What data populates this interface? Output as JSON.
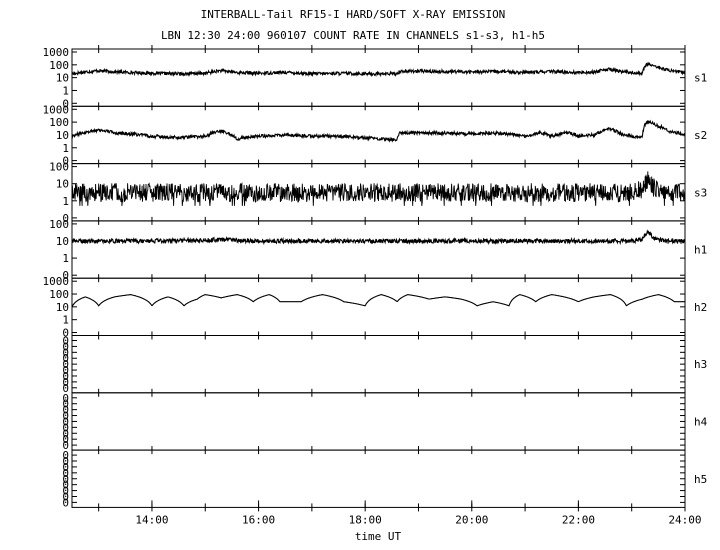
{
  "chart_data": {
    "type": "line",
    "title": "INTERBALL-Tail RF15-I HARD/SOFT X-RAY EMISSION",
    "subtitle": "LBN 12:30 24:00 960107  COUNT RATE IN CHANNELS s1-s3, h1-h5",
    "xlabel": "time UT",
    "xlim": [
      "12:30",
      "24:00"
    ],
    "x_ticks": [
      "14:00",
      "16:00",
      "18:00",
      "20:00",
      "22:00",
      "24:00"
    ],
    "y_scale": "log",
    "panels": [
      {
        "name": "s1",
        "y_ticks": [
          "1000",
          "100",
          "10",
          "1",
          "0"
        ],
        "baseline": 25,
        "series": [
          [
            12.5,
            20
          ],
          [
            13.0,
            35
          ],
          [
            13.3,
            28
          ],
          [
            14.0,
            22
          ],
          [
            14.5,
            20
          ],
          [
            15.0,
            22
          ],
          [
            15.3,
            35
          ],
          [
            15.6,
            25
          ],
          [
            16.0,
            22
          ],
          [
            16.5,
            26
          ],
          [
            17.0,
            20
          ],
          [
            17.5,
            22
          ],
          [
            18.0,
            20
          ],
          [
            18.6,
            20
          ],
          [
            18.65,
            32
          ],
          [
            19.0,
            32
          ],
          [
            19.5,
            30
          ],
          [
            20.0,
            28
          ],
          [
            20.5,
            30
          ],
          [
            21.0,
            25
          ],
          [
            21.5,
            30
          ],
          [
            22.0,
            25
          ],
          [
            22.3,
            28
          ],
          [
            22.6,
            45
          ],
          [
            22.8,
            30
          ],
          [
            23.0,
            25
          ],
          [
            23.2,
            20
          ],
          [
            23.3,
            120
          ],
          [
            23.5,
            60
          ],
          [
            23.7,
            35
          ],
          [
            24.0,
            25
          ]
        ]
      },
      {
        "name": "s2",
        "y_ticks": [
          "1000",
          "100",
          "10",
          "1",
          "0"
        ],
        "baseline": 10,
        "series": [
          [
            12.5,
            8
          ],
          [
            13.0,
            25
          ],
          [
            13.3,
            15
          ],
          [
            14.0,
            8
          ],
          [
            14.5,
            6
          ],
          [
            15.0,
            8
          ],
          [
            15.3,
            20
          ],
          [
            15.6,
            5
          ],
          [
            16.0,
            8
          ],
          [
            16.5,
            10
          ],
          [
            17.0,
            8
          ],
          [
            17.5,
            8
          ],
          [
            18.0,
            6
          ],
          [
            18.6,
            4
          ],
          [
            18.65,
            15
          ],
          [
            19.0,
            15
          ],
          [
            19.5,
            14
          ],
          [
            20.0,
            12
          ],
          [
            20.5,
            14
          ],
          [
            21.0,
            8
          ],
          [
            21.3,
            15
          ],
          [
            21.5,
            8
          ],
          [
            21.8,
            15
          ],
          [
            22.0,
            8
          ],
          [
            22.3,
            10
          ],
          [
            22.6,
            30
          ],
          [
            22.8,
            12
          ],
          [
            23.0,
            8
          ],
          [
            23.2,
            6
          ],
          [
            23.3,
            110
          ],
          [
            23.5,
            50
          ],
          [
            23.7,
            20
          ],
          [
            24.0,
            10
          ]
        ]
      },
      {
        "name": "s3",
        "y_ticks": [
          "100",
          "10",
          "1",
          "0"
        ],
        "baseline": 3,
        "series": [
          [
            12.5,
            3
          ],
          [
            13.0,
            3
          ],
          [
            14.0,
            3
          ],
          [
            15.0,
            3
          ],
          [
            16.0,
            3
          ],
          [
            17.0,
            3
          ],
          [
            18.0,
            3
          ],
          [
            19.0,
            3
          ],
          [
            20.0,
            3
          ],
          [
            21.0,
            3
          ],
          [
            22.0,
            3
          ],
          [
            23.0,
            3
          ],
          [
            23.2,
            5
          ],
          [
            23.3,
            15
          ],
          [
            23.4,
            6
          ],
          [
            23.6,
            3
          ],
          [
            24.0,
            3
          ]
        ]
      },
      {
        "name": "h1",
        "y_ticks": [
          "100",
          "10",
          "1",
          "0"
        ],
        "baseline": 10,
        "series": [
          [
            12.5,
            10
          ],
          [
            14.0,
            10
          ],
          [
            15.3,
            12
          ],
          [
            16.0,
            10
          ],
          [
            18.0,
            10
          ],
          [
            20.0,
            10
          ],
          [
            22.0,
            10
          ],
          [
            23.0,
            10
          ],
          [
            23.2,
            12
          ],
          [
            23.3,
            35
          ],
          [
            23.4,
            15
          ],
          [
            23.6,
            10
          ],
          [
            24.0,
            10
          ]
        ]
      },
      {
        "name": "h2",
        "y_ticks": [
          "1000",
          "100",
          "10",
          "1",
          "0"
        ],
        "baseline": 10,
        "series": [
          [
            12.5,
            10
          ],
          [
            12.75,
            60
          ],
          [
            13.0,
            12
          ],
          [
            13.3,
            60
          ],
          [
            13.6,
            90
          ],
          [
            14.0,
            12
          ],
          [
            14.3,
            60
          ],
          [
            14.6,
            12
          ],
          [
            14.85,
            40
          ],
          [
            15.0,
            90
          ],
          [
            15.3,
            50
          ],
          [
            15.6,
            90
          ],
          [
            15.9,
            25
          ],
          [
            16.2,
            90
          ],
          [
            16.4,
            25
          ],
          [
            16.8,
            25
          ],
          [
            17.2,
            90
          ],
          [
            17.6,
            25
          ],
          [
            18.0,
            12
          ],
          [
            18.3,
            90
          ],
          [
            18.6,
            25
          ],
          [
            18.8,
            90
          ],
          [
            19.2,
            40
          ],
          [
            19.5,
            60
          ],
          [
            19.8,
            40
          ],
          [
            20.1,
            12
          ],
          [
            20.4,
            25
          ],
          [
            20.7,
            12
          ],
          [
            20.9,
            90
          ],
          [
            21.2,
            25
          ],
          [
            21.5,
            90
          ],
          [
            22.0,
            25
          ],
          [
            22.3,
            60
          ],
          [
            22.6,
            90
          ],
          [
            22.9,
            12
          ],
          [
            23.2,
            40
          ],
          [
            23.5,
            90
          ],
          [
            23.8,
            25
          ],
          [
            24.0,
            25
          ]
        ]
      },
      {
        "name": "h3",
        "y_ticks": [
          "0",
          "0",
          "0",
          "0",
          "0",
          "0",
          "0",
          "0",
          "0"
        ],
        "baseline": 0,
        "series": []
      },
      {
        "name": "h4",
        "y_ticks": [
          "0",
          "0",
          "0",
          "0",
          "0",
          "0",
          "0",
          "0",
          "0"
        ],
        "baseline": 0,
        "series": []
      },
      {
        "name": "h5",
        "y_ticks": [
          "0",
          "0",
          "0",
          "0",
          "0",
          "0",
          "0",
          "0",
          "0"
        ],
        "baseline": 0,
        "series": []
      }
    ]
  }
}
